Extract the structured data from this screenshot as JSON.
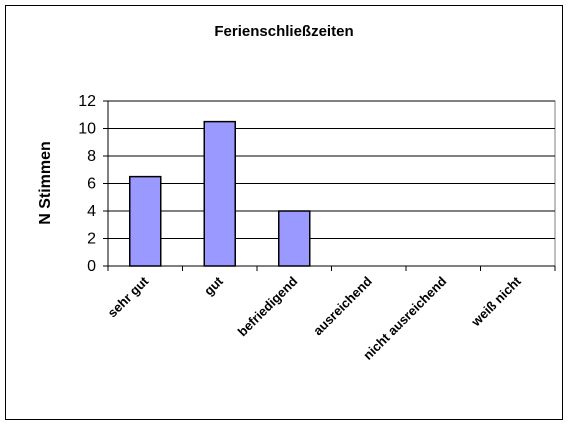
{
  "chart_data": {
    "type": "bar",
    "title": "Ferienschließzeiten",
    "ylabel": "N Stimmen",
    "categories": [
      "sehr gut",
      "gut",
      "befriedigend",
      "ausreichend",
      "nicht ausreichend",
      "weiß nicht"
    ],
    "values": [
      6.5,
      10.5,
      4,
      0,
      0,
      0
    ],
    "color": "#9999ff",
    "ylim": [
      0,
      12
    ],
    "yticks": [
      0,
      2,
      4,
      6,
      8,
      10,
      12
    ],
    "grid": true
  }
}
